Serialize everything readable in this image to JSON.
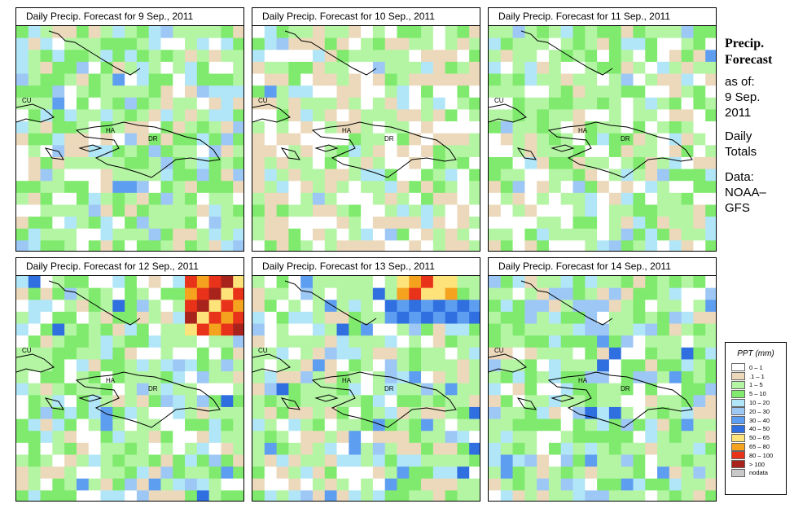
{
  "panels": [
    {
      "title": "Daily Precip. Forecast for  9 Sep., 2011"
    },
    {
      "title": "Daily Precip. Forecast for  10 Sep., 2011"
    },
    {
      "title": "Daily Precip. Forecast for  11 Sep., 2011"
    },
    {
      "title": "Daily Precip. Forecast for  12 Sep., 2011"
    },
    {
      "title": "Daily Precip. Forecast for  13 Sep., 2011"
    },
    {
      "title": "Daily Precip. Forecast for  14 Sep., 2011"
    }
  ],
  "map_labels": {
    "cuba": "CU",
    "haiti": "HA",
    "dominican_republic": "DR"
  },
  "sidebar": {
    "heading_line1": "Precip.",
    "heading_line2": "Forecast",
    "asof": "as of:",
    "date_line1": "9 Sep.",
    "date_line2": "2011",
    "totals_line1": "Daily",
    "totals_line2": "Totals",
    "data_line1": "Data:",
    "data_line2": "NOAA–",
    "data_line3": "GFS"
  },
  "legend": {
    "title": "PPT (mm)",
    "items": [
      {
        "label": "0 – 1",
        "color": "#ffffff"
      },
      {
        "label": ".1 – 1",
        "color": "#ecd9bb"
      },
      {
        "label": "1 – 5",
        "color": "#b3f5a3"
      },
      {
        "label": "5 – 10",
        "color": "#7fea6d"
      },
      {
        "label": "10 – 20",
        "color": "#b0e6f7"
      },
      {
        "label": "20 – 30",
        "color": "#9dc7f5"
      },
      {
        "label": "30 – 40",
        "color": "#5e9ef0"
      },
      {
        "label": "40 – 50",
        "color": "#2f6fe0"
      },
      {
        "label": "50 – 65",
        "color": "#fde37a"
      },
      {
        "label": "65 – 80",
        "color": "#f5a21f"
      },
      {
        "label": "80 – 100",
        "color": "#e8321a"
      },
      {
        "label": "> 100",
        "color": "#a8231b"
      },
      {
        "label": "nodata",
        "color": "#c9c9c9"
      }
    ]
  }
}
